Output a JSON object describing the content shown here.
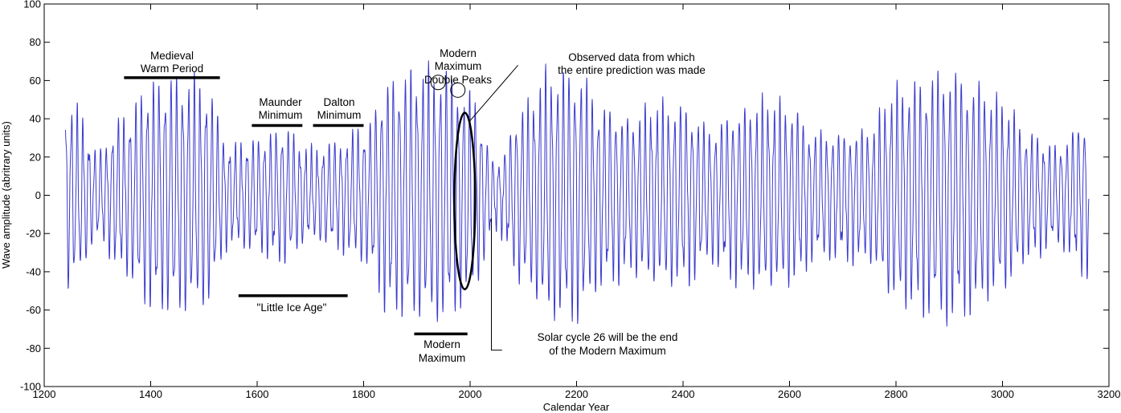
{
  "chart_data": {
    "type": "line",
    "xlabel": "Calendar Year",
    "ylabel": "Wave amplitude (abritrary units)",
    "xlim": [
      1200,
      3200
    ],
    "ylim": [
      -100,
      100
    ],
    "xticks": [
      "1200",
      "1400",
      "1600",
      "1800",
      "2000",
      "2200",
      "2400",
      "2600",
      "2800",
      "3000",
      "3200"
    ],
    "yticks": [
      "100",
      "80",
      "60",
      "40",
      "20",
      "0",
      "-20",
      "-40",
      "-60",
      "-80",
      "-100"
    ],
    "series_color": "#3a3acf",
    "x_start": 1240,
    "x_end": 3162,
    "cycle_length_years": 11,
    "envelope_years": [
      1240,
      1260,
      1300,
      1350,
      1400,
      1450,
      1500,
      1550,
      1600,
      1650,
      1700,
      1750,
      1800,
      1850,
      1900,
      1950,
      2000,
      2050,
      2100,
      2150,
      2200,
      2250,
      2300,
      2350,
      2400,
      2450,
      2500,
      2550,
      2600,
      2650,
      2700,
      2750,
      2800,
      2850,
      2900,
      2950,
      3000,
      3050,
      3100,
      3162
    ],
    "envelope_amplitudes": [
      42,
      38,
      20,
      35,
      50,
      52,
      50,
      22,
      25,
      30,
      20,
      24,
      30,
      52,
      55,
      56,
      45,
      15,
      40,
      55,
      55,
      40,
      35,
      40,
      40,
      30,
      38,
      42,
      40,
      28,
      28,
      30,
      48,
      52,
      56,
      50,
      42,
      28,
      22,
      35
    ],
    "labels": {
      "medieval": [
        "Medieval",
        "Warm Period"
      ],
      "maunder": [
        "Maunder",
        "Minimum"
      ],
      "dalton": [
        "Dalton",
        "Minimum"
      ],
      "little_ice_age": "\"Little Ice Age\"",
      "modern_max_bottom": [
        "Modern",
        "Maximum"
      ],
      "modern_double": [
        "Modern",
        "Maximum",
        "Double Peaks"
      ],
      "observed": [
        "Observed data from which",
        "the entire prediction was made"
      ],
      "solar_cycle": [
        "Solar cycle 26 will be the end",
        "of the Modern Maximum"
      ]
    },
    "annotation_years": {
      "medieval_bar": [
        1350,
        1530
      ],
      "maunder_bar": [
        1590,
        1685
      ],
      "dalton_bar": [
        1705,
        1800
      ],
      "little_ice_age_bar": [
        1565,
        1770
      ],
      "modern_max_bar": [
        1895,
        1995
      ],
      "double_peak_1": 1940,
      "double_peak_2": 1977,
      "observed_ellipse_center": 1990,
      "solar_cycle_pointer": 2040
    }
  }
}
